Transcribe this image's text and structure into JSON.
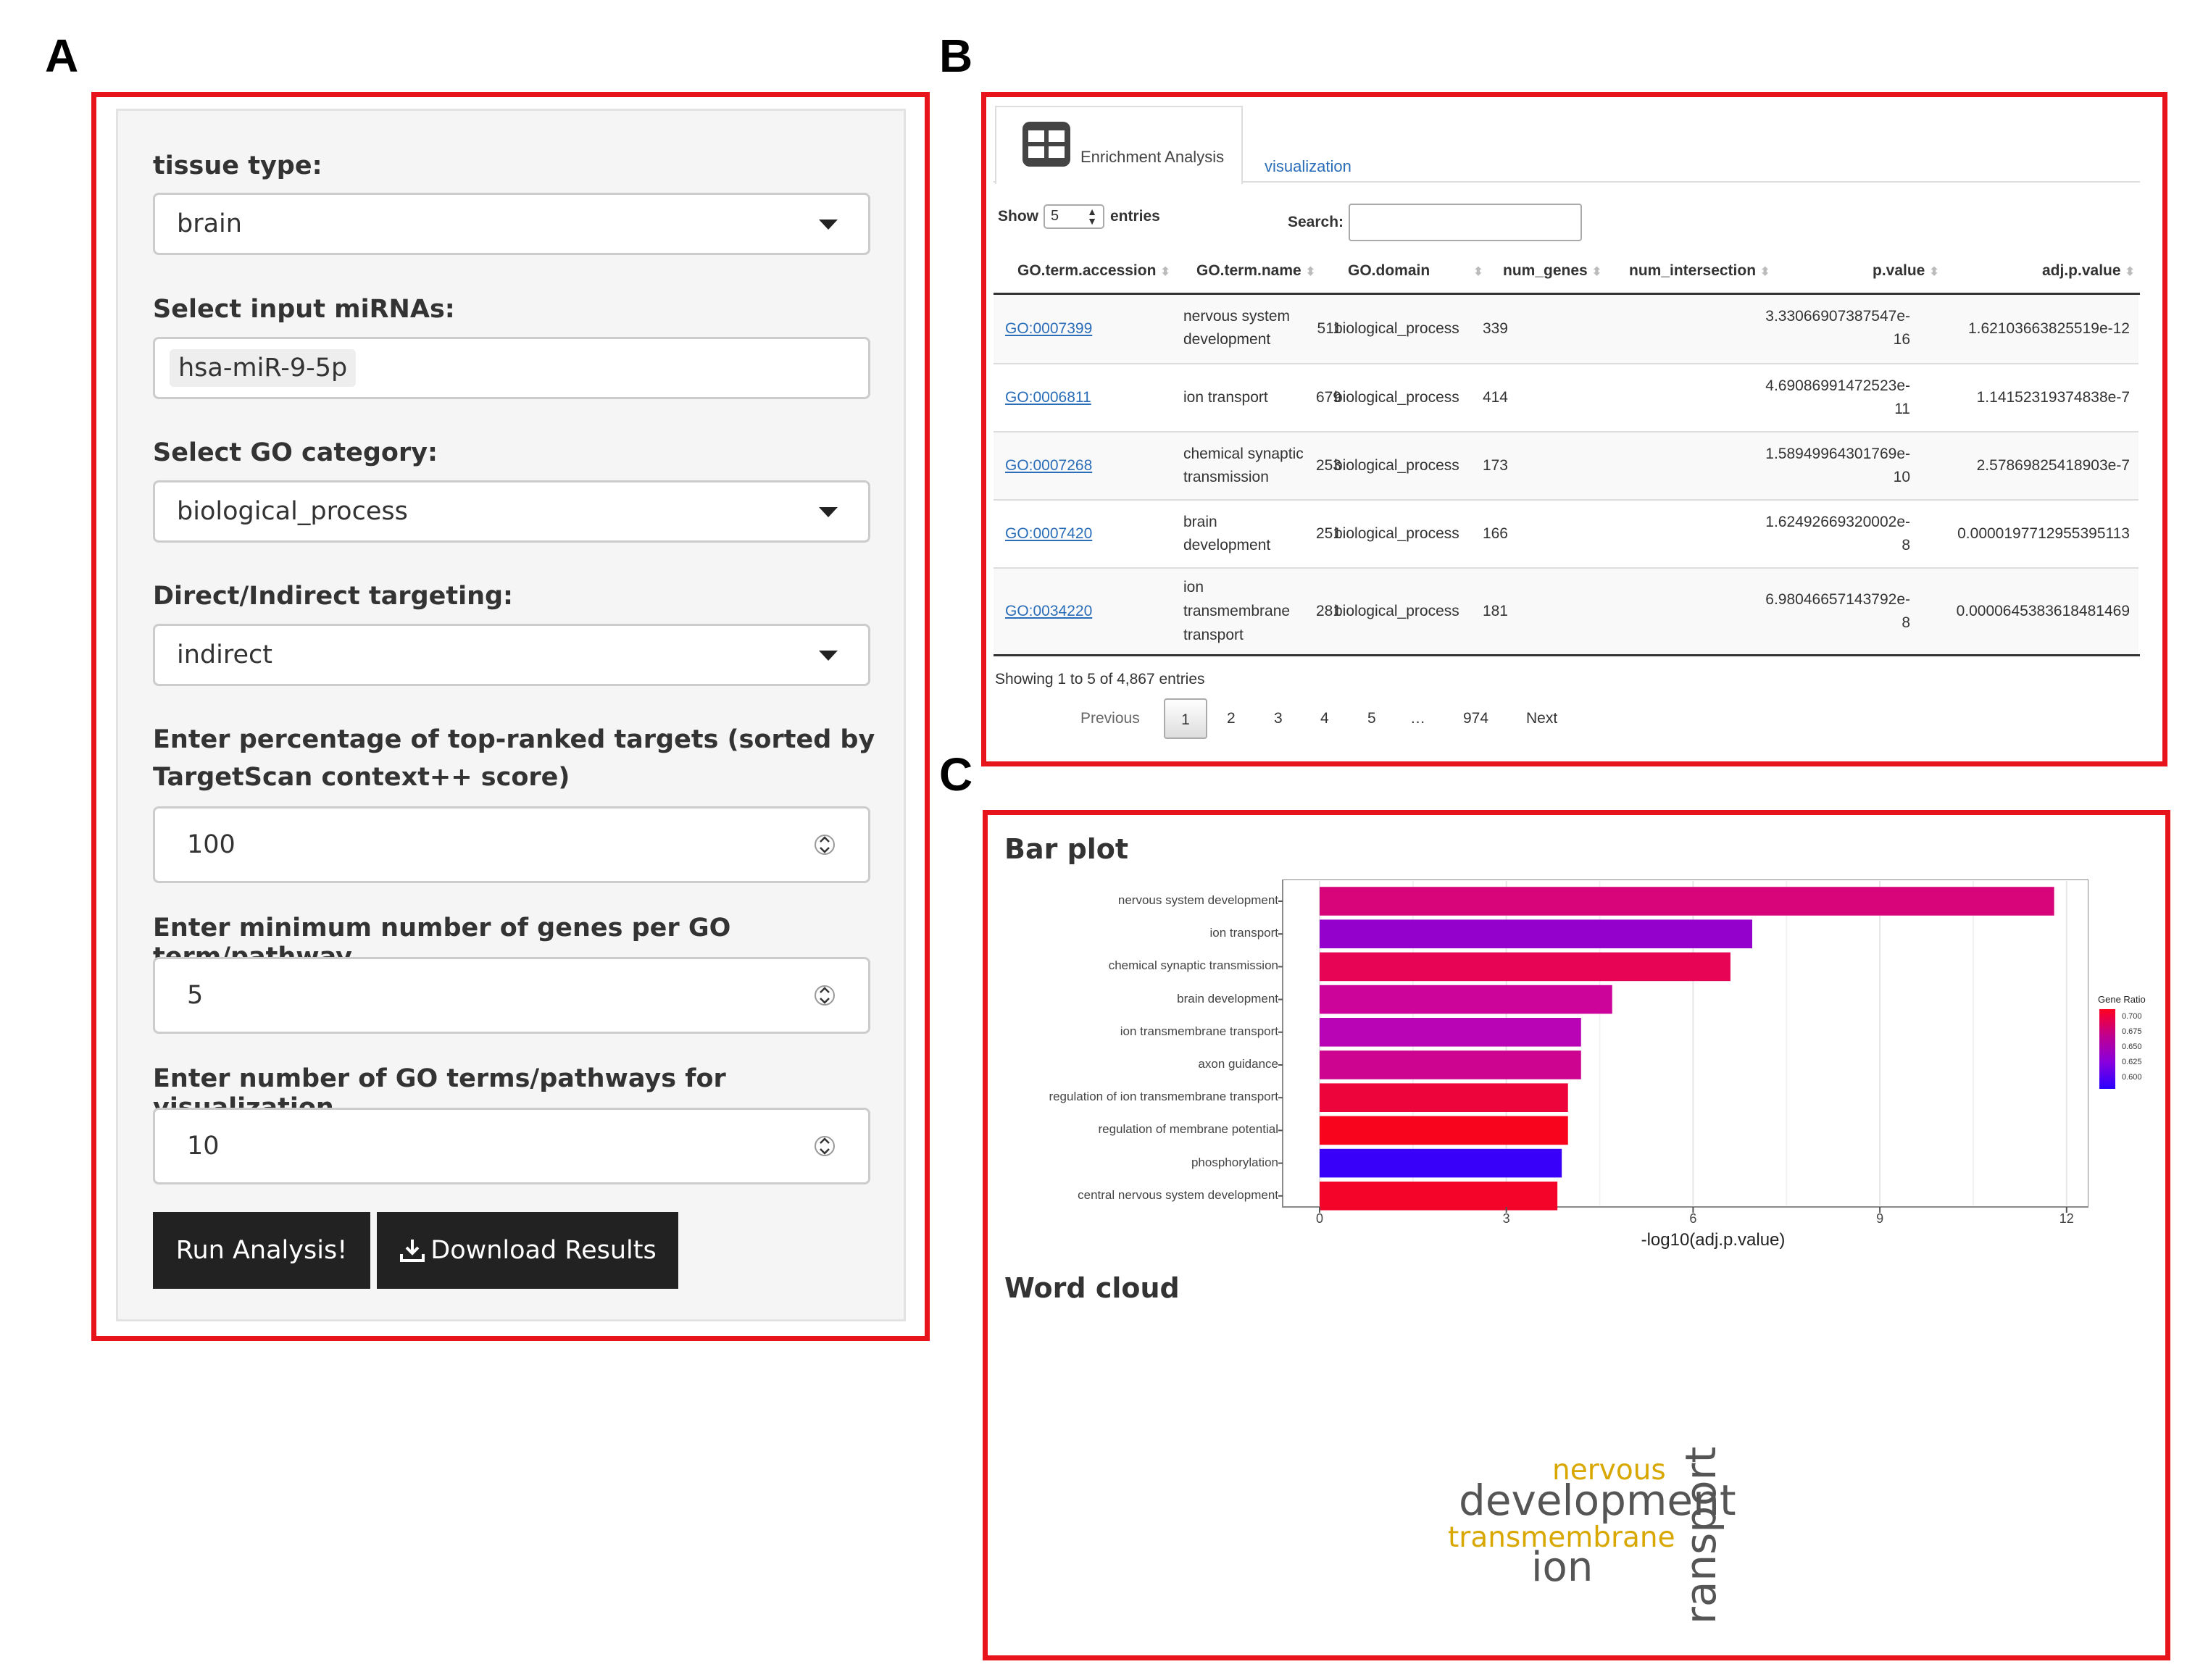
{
  "panel_letters": {
    "a": "A",
    "b": "B",
    "c": "C"
  },
  "colors": {
    "frame": "#e8141c",
    "button": "#222222",
    "link": "#2a6db8"
  },
  "form": {
    "tissue_label": "tissue type:",
    "tissue_value": "brain",
    "mirna_label": "Select input miRNAs:",
    "mirna_value": "hsa-miR-9-5p",
    "go_label": "Select GO category:",
    "go_value": "biological_process",
    "targeting_label": "Direct/Indirect targeting:",
    "targeting_value": "indirect",
    "pct_label_line1": "Enter percentage of top-ranked targets (sorted by",
    "pct_label_line2": "TargetScan context++ score)",
    "pct_value": "100",
    "min_genes_label": "Enter minimum number of genes per GO term/pathway",
    "min_genes_value": "5",
    "num_terms_label": "Enter number of GO terms/pathways for visualization",
    "num_terms_value": "10",
    "run_button": "Run Analysis!",
    "download_button": "Download Results"
  },
  "tabs": {
    "enrichment": "Enrichment Analysis",
    "visualization": "visualization"
  },
  "table": {
    "show_label": "Show",
    "show_value": "5",
    "entries_label": "entries",
    "search_label": "Search:",
    "headers": [
      "GO.term.accession",
      "GO.term.name",
      "GO.domain",
      "num_genes",
      "num_intersection",
      "p.value",
      "adj.p.value"
    ],
    "rows": [
      {
        "acc": "GO:0007399",
        "name": [
          "nervous system",
          "development"
        ],
        "domain": "biological_process",
        "genes": "511",
        "inter": "339",
        "p": [
          "3.33066907387547e-",
          "16"
        ],
        "adj": "1.62103663825519e-12"
      },
      {
        "acc": "GO:0006811",
        "name": [
          "ion transport"
        ],
        "domain": "biological_process",
        "genes": "679",
        "inter": "414",
        "p": [
          "4.69086991472523e-",
          "11"
        ],
        "adj": "1.14152319374838e-7"
      },
      {
        "acc": "GO:0007268",
        "name": [
          "chemical synaptic",
          "transmission"
        ],
        "domain": "biological_process",
        "genes": "253",
        "inter": "173",
        "p": [
          "1.58949964301769e-",
          "10"
        ],
        "adj": "2.57869825418903e-7"
      },
      {
        "acc": "GO:0007420",
        "name": [
          "brain",
          "development"
        ],
        "domain": "biological_process",
        "genes": "251",
        "inter": "166",
        "p": [
          "1.62492669320002e-",
          "8"
        ],
        "adj": "0.0000197712955395113"
      },
      {
        "acc": "GO:0034220",
        "name": [
          "ion",
          "transmembrane",
          "transport"
        ],
        "domain": "biological_process",
        "genes": "281",
        "inter": "181",
        "p": [
          "6.98046657143792e-",
          "8"
        ],
        "adj": "0.0000645383618481469"
      }
    ],
    "info": "Showing 1 to 5 of 4,867 entries",
    "pagination": {
      "previous": "Previous",
      "pages": [
        "1",
        "2",
        "3",
        "4",
        "5",
        "…",
        "974"
      ],
      "next": "Next"
    }
  },
  "bar_plot_title": "Bar plot",
  "word_cloud_title": "Word cloud",
  "chart_data": {
    "type": "bar",
    "orientation": "horizontal",
    "categories": [
      "nervous system development",
      "ion transport",
      "chemical synaptic transmission",
      "brain development",
      "ion transmembrane transport",
      "axon guidance",
      "regulation of ion transmembrane transport",
      "regulation of membrane potential",
      "phosphorylation",
      "central nervous system development"
    ],
    "values": [
      11.8,
      6.95,
      6.6,
      4.7,
      4.2,
      4.2,
      3.99,
      3.99,
      3.89,
      3.82
    ],
    "colors": [
      "#d8047a",
      "#9400cc",
      "#e80454",
      "#cc049a",
      "#b804b4",
      "#cc0490",
      "#ec043a",
      "#f8041c",
      "#3800f8",
      "#f40428"
    ],
    "xlabel": "-log10(adj.p.value)",
    "xlim": [
      0,
      12.5
    ],
    "xticks": [
      "0",
      "3",
      "6",
      "9",
      "12"
    ],
    "legend": {
      "title": "Gene Ratio",
      "labels": [
        "0.700",
        "0.675",
        "0.650",
        "0.625",
        "0.600"
      ],
      "placement": "right"
    },
    "grid": true
  },
  "word_cloud": {
    "words": [
      {
        "text": "nervous",
        "color": "#d8a700"
      },
      {
        "text": "development",
        "color": "#555555"
      },
      {
        "text": "transmembrane",
        "color": "#d8a700"
      },
      {
        "text": "ion",
        "color": "#555555"
      },
      {
        "text": "ransport",
        "color": "#555555"
      }
    ]
  }
}
